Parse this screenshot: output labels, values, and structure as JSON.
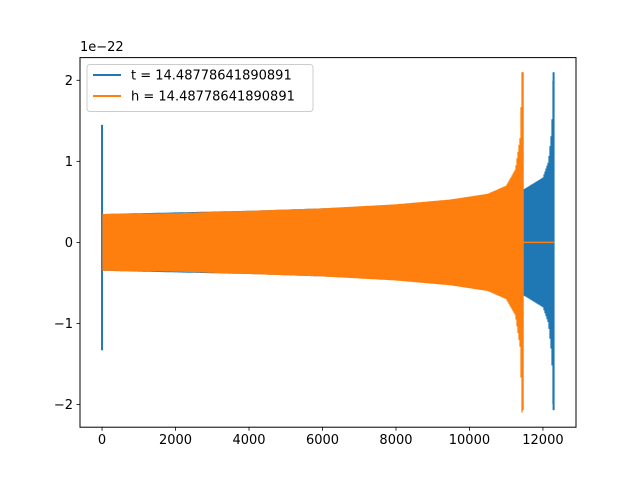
{
  "chart_data": {
    "type": "line",
    "title": "",
    "xlabel": "",
    "ylabel": "",
    "y_offset_label": "1e−22",
    "xlim": [
      -600,
      12900
    ],
    "ylim": [
      -2.28,
      2.28
    ],
    "x_ticks": [
      0,
      2000,
      4000,
      6000,
      8000,
      10000,
      12000
    ],
    "x_tick_labels": [
      "0",
      "2000",
      "4000",
      "6000",
      "8000",
      "10000",
      "12000"
    ],
    "y_ticks": [
      -2,
      -1,
      0,
      1,
      2
    ],
    "y_tick_labels": [
      "−2",
      "−1",
      "0",
      "1",
      "2"
    ],
    "grid": false,
    "legend_position": "upper-left",
    "series": [
      {
        "name": "t = 14.48778641890891",
        "color": "#1f77b4",
        "x_start": 0,
        "x_end": 12300,
        "envelope": [
          [
            0,
            0.35
          ],
          [
            2000,
            0.37
          ],
          [
            4000,
            0.39
          ],
          [
            6000,
            0.42
          ],
          [
            8000,
            0.46
          ],
          [
            10000,
            0.54
          ],
          [
            11000,
            0.6
          ],
          [
            11500,
            0.66
          ],
          [
            12000,
            0.8
          ],
          [
            12150,
            1.0
          ],
          [
            12240,
            1.4
          ],
          [
            12280,
            2.1
          ],
          [
            12300,
            2.1
          ]
        ],
        "start_spike": {
          "x": 0,
          "max": 1.45,
          "min": -1.33
        },
        "end_spike": {
          "x": 12290,
          "max": 2.1,
          "min": -2.07
        }
      },
      {
        "name": "h = 14.48778641890891",
        "color": "#ff7f0e",
        "x_start": 0,
        "x_end": 12300,
        "merger_x": 11450,
        "envelope": [
          [
            0,
            0.35
          ],
          [
            2000,
            0.36
          ],
          [
            4000,
            0.39
          ],
          [
            6000,
            0.42
          ],
          [
            8000,
            0.47
          ],
          [
            9500,
            0.53
          ],
          [
            10500,
            0.6
          ],
          [
            11000,
            0.7
          ],
          [
            11250,
            0.9
          ],
          [
            11380,
            1.3
          ],
          [
            11430,
            2.1
          ],
          [
            11450,
            2.1
          ]
        ],
        "end_spike": {
          "x": 11450,
          "max": 2.1,
          "min": -2.07
        },
        "post_merger_value": 0
      }
    ]
  }
}
